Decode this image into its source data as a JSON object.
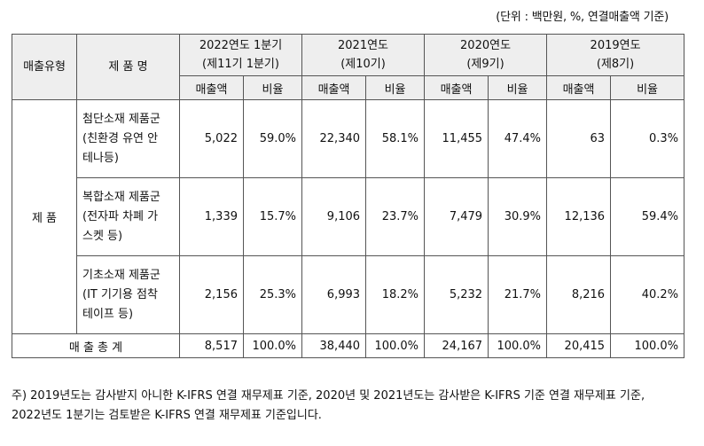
{
  "unit_note": "(단위 : 백만원, %, 연결매출액 기준)",
  "headers": {
    "type": "매출유형",
    "product": "제 품 명",
    "periods": [
      {
        "line1": "2022연도 1분기",
        "line2": "(제11기 1분기)"
      },
      {
        "line1": "2021연도",
        "line2": "(제10기)"
      },
      {
        "line1": "2020연도",
        "line2": "(제9기)"
      },
      {
        "line1": "2019연도",
        "line2": "(제8기)"
      }
    ],
    "sales": "매출액",
    "ratio": "비율"
  },
  "category": "제 품",
  "rows": [
    {
      "name_lines": [
        "첨단소재 제품군",
        "(친환경 유연 안",
        "테나등)"
      ],
      "values": [
        {
          "sales": "5,022",
          "ratio": "59.0%"
        },
        {
          "sales": "22,340",
          "ratio": "58.1%"
        },
        {
          "sales": "11,455",
          "ratio": "47.4%"
        },
        {
          "sales": "63",
          "ratio": "0.3%"
        }
      ]
    },
    {
      "name_lines": [
        "복합소재 제품군",
        "(전자파 차폐 가",
        "스켓 등)"
      ],
      "values": [
        {
          "sales": "1,339",
          "ratio": "15.7%"
        },
        {
          "sales": "9,106",
          "ratio": "23.7%"
        },
        {
          "sales": "7,479",
          "ratio": "30.9%"
        },
        {
          "sales": "12,136",
          "ratio": "59.4%"
        }
      ]
    },
    {
      "name_lines": [
        "기초소재 제품군",
        "(IT 기기용 점착",
        "테이프 등)"
      ],
      "values": [
        {
          "sales": "2,156",
          "ratio": "25.3%"
        },
        {
          "sales": "6,993",
          "ratio": "18.2%"
        },
        {
          "sales": "5,232",
          "ratio": "21.7%"
        },
        {
          "sales": "8,216",
          "ratio": "40.2%"
        }
      ]
    }
  ],
  "total": {
    "label": "매 출 총 계",
    "values": [
      {
        "sales": "8,517",
        "ratio": "100.0%"
      },
      {
        "sales": "38,440",
        "ratio": "100.0%"
      },
      {
        "sales": "24,167",
        "ratio": "100.0%"
      },
      {
        "sales": "20,415",
        "ratio": "100.0%"
      }
    ]
  },
  "footnote": "주) 2019년도는 감사받지 아니한 K-IFRS 연결 재무제표 기준, 2020년 및 2021년도는 감사받은 K-IFRS 기준 연결 재무제표 기준, 2022년도 1분기는 검토받은 K-IFRS 연결 재무제표 기준입니다."
}
